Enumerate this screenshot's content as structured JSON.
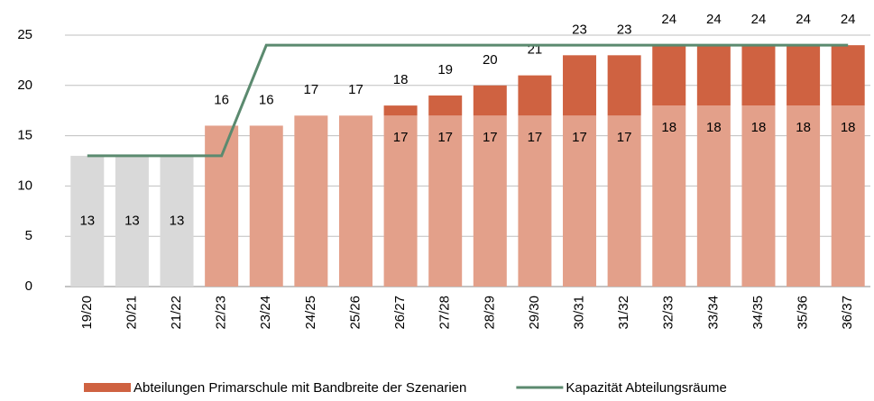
{
  "chart_data": {
    "type": "stacked-bar-line",
    "categories": [
      "19/20",
      "20/21",
      "21/22",
      "22/23",
      "23/24",
      "24/25",
      "25/26",
      "26/27",
      "27/28",
      "28/29",
      "29/30",
      "30/31",
      "31/32",
      "32/33",
      "33/34",
      "34/35",
      "35/36",
      "36/37"
    ],
    "series": [
      {
        "type": "bar",
        "colors": [
          "#d9d9d9",
          "#d9d9d9",
          "#d9d9d9",
          "#e3a08a",
          "#e3a08a",
          "#e3a08a",
          "#e3a08a",
          "#e3a08a",
          "#e3a08a",
          "#e3a08a",
          "#e3a08a",
          "#e3a08a",
          "#e3a08a",
          "#e3a08a",
          "#e3a08a",
          "#e3a08a",
          "#e3a08a",
          "#e3a08a"
        ],
        "values": [
          13,
          13,
          13,
          16,
          16,
          17,
          17,
          17,
          17,
          17,
          17,
          17,
          17,
          18,
          18,
          18,
          18,
          18
        ],
        "value_labels": [
          "13",
          "13",
          "13",
          null,
          null,
          null,
          null,
          "17",
          "17",
          "17",
          "17",
          "17",
          "17",
          "18",
          "18",
          "18",
          "18",
          "18"
        ]
      },
      {
        "type": "bar",
        "name": "Abteilungen Primarschule mit Bandbreite der Szenarien",
        "color": "#cf6241",
        "values": [
          0,
          0,
          0,
          0,
          0,
          0,
          0,
          1,
          2,
          3,
          4,
          6,
          6,
          6,
          6,
          6,
          6,
          6
        ]
      },
      {
        "type": "line",
        "name": "Kapazität Abteilungsräume",
        "color": "#5b8a6f",
        "values": [
          13,
          13,
          13,
          13,
          24,
          24,
          24,
          24,
          24,
          24,
          24,
          24,
          24,
          24,
          24,
          24,
          24,
          24
        ]
      }
    ],
    "total_labels": [
      null,
      null,
      null,
      "16",
      "16",
      "17",
      "17",
      "18",
      "19",
      "20",
      "21",
      "23",
      "23",
      "24",
      "24",
      "24",
      "24",
      "24"
    ],
    "ylim": [
      0,
      25
    ],
    "yticks": [
      0,
      5,
      10,
      15,
      20,
      25
    ],
    "grid": true
  }
}
